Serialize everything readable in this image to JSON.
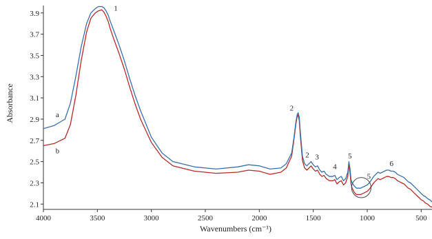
{
  "chart_data": {
    "type": "line",
    "title": "",
    "xlabel": "Wavenumbers (cm⁻¹)",
    "ylabel": "Absorbance",
    "xlim": [
      4000,
      400
    ],
    "ylim": [
      2.05,
      3.97
    ],
    "x_reversed": true,
    "grid": false,
    "xticks": [
      4000,
      3500,
      3000,
      2500,
      2000,
      1500,
      1000,
      500
    ],
    "xtick_labels": [
      "4000",
      "3500",
      "3000",
      "2500",
      "2000",
      "1500",
      "1000",
      "500"
    ],
    "yticks": [
      2.1,
      2.3,
      2.5,
      2.7,
      2.9,
      3.1,
      3.3,
      3.5,
      3.7,
      3.9
    ],
    "ytick_labels": [
      "2.1",
      "2.3",
      "2.5",
      "2.7",
      "2.9",
      "3.1",
      "3.3",
      "3.5",
      "3.7",
      "3.9"
    ],
    "series": [
      {
        "name": "a",
        "color": "#3a6fa6",
        "x": [
          4000,
          3900,
          3800,
          3750,
          3700,
          3650,
          3600,
          3560,
          3520,
          3490,
          3460,
          3440,
          3420,
          3400,
          3380,
          3350,
          3300,
          3250,
          3200,
          3150,
          3100,
          3000,
          2900,
          2800,
          2600,
          2400,
          2200,
          2100,
          2000,
          1900,
          1800,
          1750,
          1700,
          1680,
          1660,
          1650,
          1640,
          1630,
          1620,
          1600,
          1580,
          1560,
          1540,
          1520,
          1500,
          1480,
          1460,
          1440,
          1420,
          1400,
          1380,
          1350,
          1320,
          1300,
          1280,
          1260,
          1240,
          1220,
          1200,
          1180,
          1170,
          1160,
          1150,
          1140,
          1120,
          1100,
          1080,
          1060,
          1040,
          1020,
          1000,
          980,
          960,
          940,
          920,
          900,
          880,
          860,
          840,
          820,
          800,
          780,
          760,
          740,
          720,
          700,
          680,
          660,
          640,
          620,
          600,
          580,
          560,
          540,
          520,
          500,
          480,
          460,
          440,
          420,
          400
        ],
        "y": [
          2.81,
          2.84,
          2.9,
          3.05,
          3.3,
          3.58,
          3.8,
          3.9,
          3.94,
          3.96,
          3.96,
          3.95,
          3.92,
          3.88,
          3.82,
          3.74,
          3.6,
          3.45,
          3.28,
          3.12,
          2.98,
          2.73,
          2.58,
          2.5,
          2.45,
          2.43,
          2.45,
          2.47,
          2.46,
          2.43,
          2.44,
          2.48,
          2.58,
          2.72,
          2.88,
          2.94,
          2.96,
          2.92,
          2.78,
          2.55,
          2.48,
          2.46,
          2.48,
          2.5,
          2.47,
          2.45,
          2.46,
          2.42,
          2.4,
          2.41,
          2.38,
          2.36,
          2.36,
          2.37,
          2.33,
          2.35,
          2.36,
          2.32,
          2.34,
          2.4,
          2.5,
          2.44,
          2.33,
          2.3,
          2.27,
          2.25,
          2.25,
          2.25,
          2.26,
          2.27,
          2.28,
          2.3,
          2.33,
          2.36,
          2.38,
          2.4,
          2.39,
          2.4,
          2.41,
          2.42,
          2.42,
          2.41,
          2.41,
          2.4,
          2.38,
          2.37,
          2.36,
          2.35,
          2.33,
          2.31,
          2.3,
          2.28,
          2.26,
          2.24,
          2.22,
          2.2,
          2.18,
          2.17,
          2.15,
          2.14,
          2.12
        ]
      },
      {
        "name": "b",
        "color": "#b22a2a",
        "x": [
          4000,
          3900,
          3800,
          3750,
          3700,
          3650,
          3600,
          3560,
          3520,
          3490,
          3460,
          3440,
          3420,
          3400,
          3380,
          3350,
          3300,
          3250,
          3200,
          3150,
          3100,
          3000,
          2900,
          2800,
          2600,
          2400,
          2200,
          2100,
          2000,
          1900,
          1800,
          1750,
          1700,
          1680,
          1660,
          1650,
          1640,
          1630,
          1620,
          1600,
          1580,
          1560,
          1540,
          1520,
          1500,
          1480,
          1460,
          1440,
          1420,
          1400,
          1380,
          1350,
          1320,
          1300,
          1280,
          1260,
          1240,
          1220,
          1200,
          1180,
          1170,
          1160,
          1150,
          1140,
          1120,
          1100,
          1080,
          1060,
          1040,
          1020,
          1000,
          980,
          960,
          940,
          920,
          900,
          880,
          860,
          840,
          820,
          800,
          780,
          760,
          740,
          720,
          700,
          680,
          660,
          640,
          620,
          600,
          580,
          560,
          540,
          520,
          500,
          480,
          460,
          440,
          420,
          400
        ],
        "y": [
          2.65,
          2.67,
          2.72,
          2.85,
          3.12,
          3.45,
          3.72,
          3.85,
          3.9,
          3.92,
          3.93,
          3.91,
          3.87,
          3.82,
          3.75,
          3.66,
          3.52,
          3.37,
          3.2,
          3.04,
          2.9,
          2.68,
          2.54,
          2.46,
          2.41,
          2.39,
          2.4,
          2.42,
          2.41,
          2.38,
          2.4,
          2.44,
          2.55,
          2.7,
          2.86,
          2.92,
          2.94,
          2.89,
          2.74,
          2.51,
          2.44,
          2.42,
          2.44,
          2.46,
          2.43,
          2.41,
          2.42,
          2.38,
          2.36,
          2.37,
          2.34,
          2.32,
          2.32,
          2.33,
          2.29,
          2.31,
          2.32,
          2.28,
          2.3,
          2.36,
          2.48,
          2.4,
          2.29,
          2.25,
          2.21,
          2.19,
          2.19,
          2.19,
          2.2,
          2.21,
          2.22,
          2.24,
          2.27,
          2.3,
          2.32,
          2.34,
          2.33,
          2.34,
          2.35,
          2.36,
          2.36,
          2.35,
          2.35,
          2.34,
          2.32,
          2.31,
          2.3,
          2.29,
          2.27,
          2.25,
          2.24,
          2.22,
          2.2,
          2.18,
          2.16,
          2.14,
          2.13,
          2.11,
          2.1,
          2.08,
          2.07
        ]
      }
    ],
    "series_labels": [
      {
        "text": "a",
        "x": 3870,
        "y": 2.92
      },
      {
        "text": "b",
        "x": 3870,
        "y": 2.58
      }
    ],
    "annotations": [
      {
        "text": "1",
        "x": 3330,
        "y": 3.92
      },
      {
        "text": "2",
        "x": 1700,
        "y": 2.98
      },
      {
        "text": "2",
        "x": 1555,
        "y": 2.54
      },
      {
        "text": "3",
        "x": 1465,
        "y": 2.52
      },
      {
        "text": "4",
        "x": 1300,
        "y": 2.43
      },
      {
        "text": "5",
        "x": 1160,
        "y": 2.53
      },
      {
        "text": "5",
        "x": 985,
        "y": 2.34
      },
      {
        "text": "6",
        "x": 775,
        "y": 2.46
      }
    ],
    "circle_markers": [
      {
        "x": 1055,
        "y": 2.255,
        "rx_data": 90,
        "ry_data": 0.095
      }
    ]
  }
}
